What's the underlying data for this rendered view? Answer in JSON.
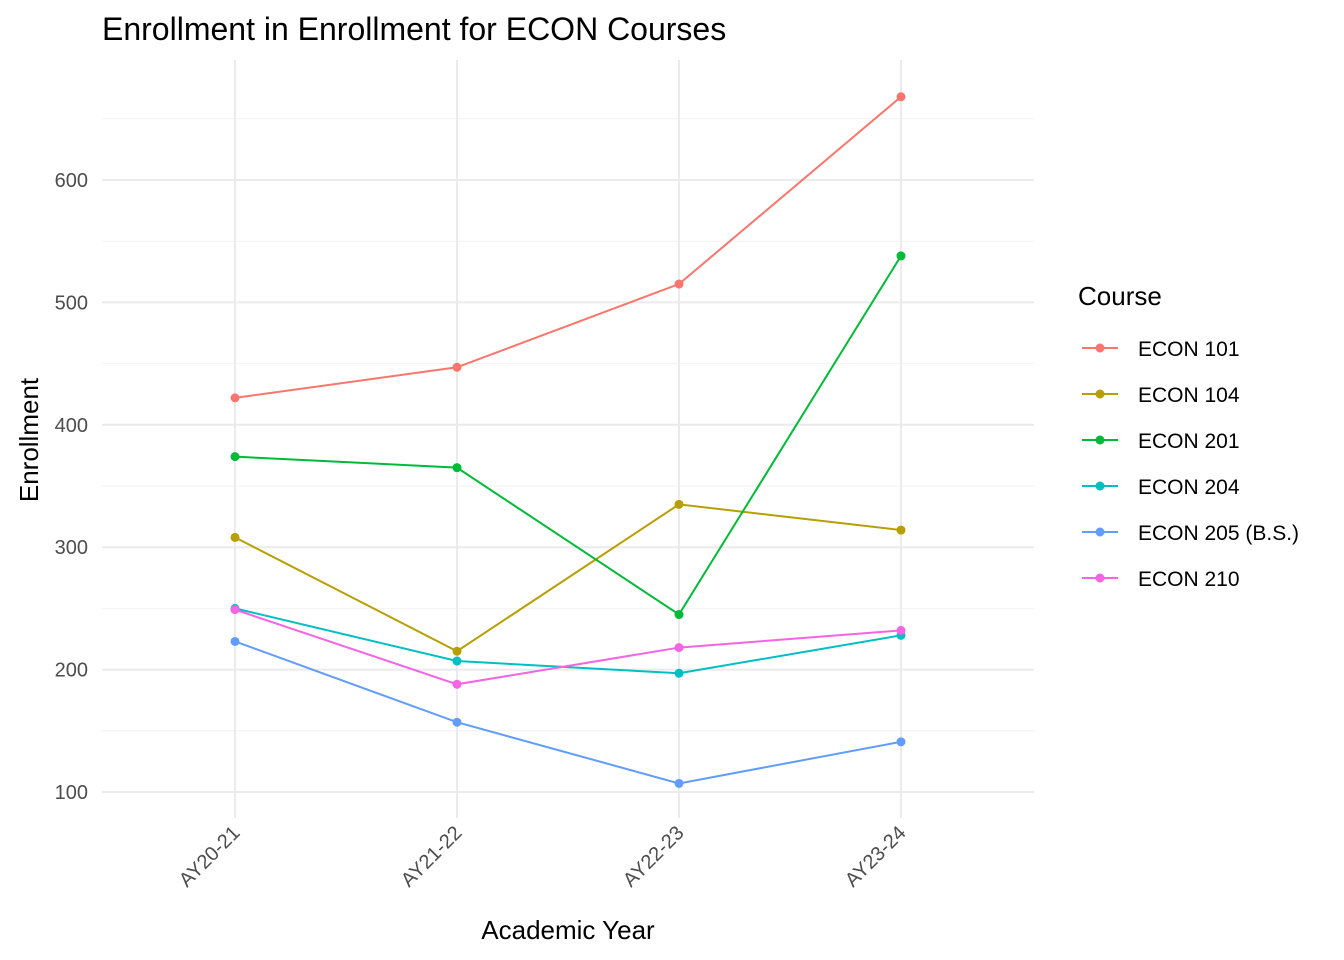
{
  "chart_data": {
    "type": "line",
    "title": "Enrollment in Enrollment for ECON Courses",
    "xlabel": "Academic Year",
    "ylabel": "Enrollment",
    "categories": [
      "AY20-21",
      "AY21-22",
      "AY22-23",
      "AY23-24"
    ],
    "ylim": [
      70,
      690
    ],
    "yticks": [
      100,
      200,
      300,
      400,
      500,
      600
    ],
    "grid": true,
    "legend": {
      "title": "Course",
      "position": "right"
    },
    "series": [
      {
        "name": "ECON 101",
        "color": "#F8766D",
        "values": [
          422,
          447,
          515,
          668
        ]
      },
      {
        "name": "ECON 104",
        "color": "#B79F00",
        "values": [
          308,
          215,
          335,
          314
        ]
      },
      {
        "name": "ECON 201",
        "color": "#00BA38",
        "values": [
          374,
          365,
          245,
          538
        ]
      },
      {
        "name": "ECON 204",
        "color": "#00BFC4",
        "values": [
          250,
          207,
          197,
          228
        ]
      },
      {
        "name": "ECON 205 (B.S.)",
        "color": "#619CFF",
        "values": [
          223,
          157,
          107,
          141
        ]
      },
      {
        "name": "ECON 210",
        "color": "#F564E3",
        "values": [
          249,
          188,
          218,
          232
        ]
      }
    ]
  }
}
